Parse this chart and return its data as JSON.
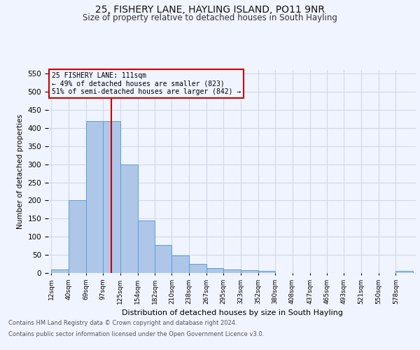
{
  "title_line1": "25, FISHERY LANE, HAYLING ISLAND, PO11 9NR",
  "title_line2": "Size of property relative to detached houses in South Hayling",
  "xlabel": "Distribution of detached houses by size in South Hayling",
  "ylabel": "Number of detached properties",
  "footnote1": "Contains HM Land Registry data © Crown copyright and database right 2024.",
  "footnote2": "Contains public sector information licensed under the Open Government Licence v3.0.",
  "bar_labels": [
    "12sqm",
    "40sqm",
    "69sqm",
    "97sqm",
    "125sqm",
    "154sqm",
    "182sqm",
    "210sqm",
    "238sqm",
    "267sqm",
    "295sqm",
    "323sqm",
    "352sqm",
    "380sqm",
    "408sqm",
    "437sqm",
    "465sqm",
    "493sqm",
    "521sqm",
    "550sqm",
    "578sqm"
  ],
  "bar_values": [
    10,
    200,
    420,
    420,
    300,
    145,
    78,
    49,
    25,
    13,
    10,
    8,
    5,
    0,
    0,
    0,
    0,
    0,
    0,
    0,
    5
  ],
  "bar_color": "#aec6e8",
  "bar_edge_color": "#5a9fd4",
  "grid_color": "#d0d8e8",
  "property_line_x": 111,
  "property_line_label": "25 FISHERY LANE: 111sqm",
  "annotation_line1": "← 49% of detached houses are smaller (823)",
  "annotation_line2": "51% of semi-detached houses are larger (842) →",
  "annotation_box_color": "#cc0000",
  "ylim": [
    0,
    560
  ],
  "background_color": "#f0f4ff"
}
